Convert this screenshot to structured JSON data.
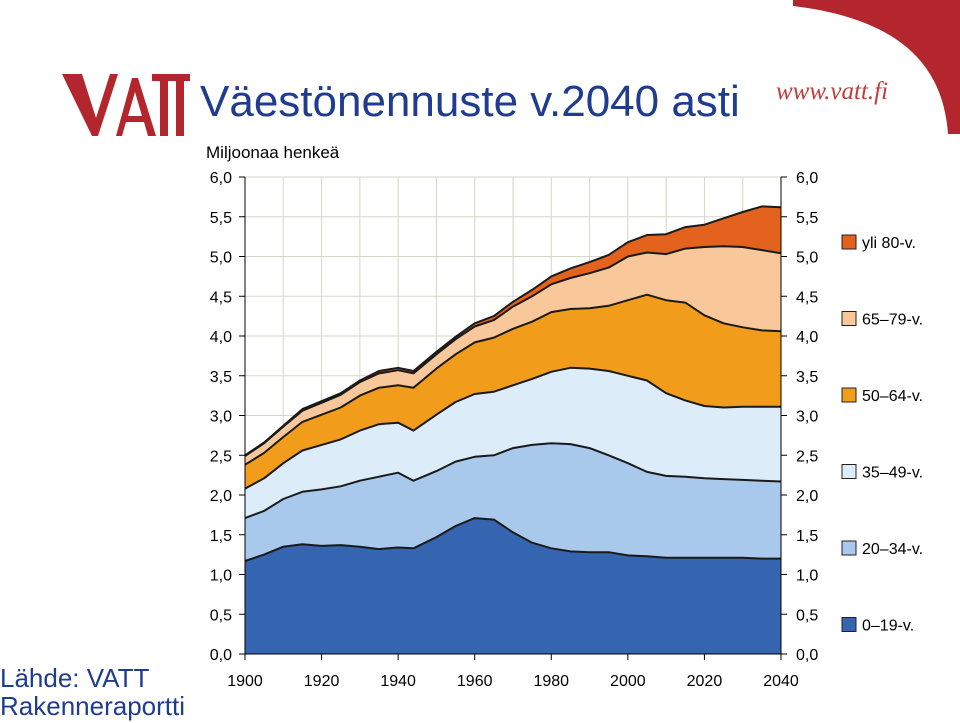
{
  "header": {
    "logo_text": "VATT",
    "title": "Väestönennuste v.2040 asti",
    "url": "www.vatt.fi"
  },
  "source": {
    "line1": "Lähde: VATT",
    "line2": "Rakenneraportti"
  },
  "colors": {
    "brand_red": "#b3262d",
    "title_blue": "#1f3c8f"
  },
  "chart_data": {
    "type": "area",
    "stacked": true,
    "ylabel": "Miljoonaa henkeä",
    "xlim": [
      1900,
      2040
    ],
    "ylim": [
      0,
      6
    ],
    "x_ticks": [
      "1900",
      "1920",
      "1940",
      "1960",
      "1980",
      "2000",
      "2020",
      "2040"
    ],
    "y_ticks": [
      "0,0",
      "0,5",
      "1,0",
      "1,5",
      "2,0",
      "2,5",
      "3,0",
      "3,5",
      "4,0",
      "4,5",
      "5,0",
      "5,5",
      "6,0"
    ],
    "grid": true,
    "legend_position": "right",
    "x": [
      1900,
      1905,
      1910,
      1915,
      1920,
      1925,
      1930,
      1935,
      1940,
      1944,
      1950,
      1955,
      1960,
      1965,
      1970,
      1975,
      1980,
      1985,
      1990,
      1995,
      2000,
      2005,
      2010,
      2015,
      2020,
      2025,
      2030,
      2035,
      2040
    ],
    "series": [
      {
        "name": "0–19-v.",
        "color": "#3565b0",
        "values": [
          1.17,
          1.25,
          1.35,
          1.38,
          1.36,
          1.37,
          1.35,
          1.32,
          1.34,
          1.33,
          1.47,
          1.61,
          1.71,
          1.69,
          1.53,
          1.4,
          1.33,
          1.29,
          1.28,
          1.28,
          1.24,
          1.23,
          1.21,
          1.21,
          1.21,
          1.21,
          1.21,
          1.2,
          1.2
        ]
      },
      {
        "name": "20–34-v.",
        "color": "#a8c8ec",
        "values": [
          0.54,
          0.55,
          0.6,
          0.66,
          0.71,
          0.74,
          0.83,
          0.91,
          0.94,
          0.85,
          0.83,
          0.81,
          0.77,
          0.81,
          1.06,
          1.23,
          1.32,
          1.35,
          1.31,
          1.22,
          1.16,
          1.06,
          1.03,
          1.02,
          1.0,
          0.99,
          0.98,
          0.98,
          0.97
        ]
      },
      {
        "name": "35–49-v.",
        "color": "#dcecf8",
        "values": [
          0.37,
          0.41,
          0.45,
          0.52,
          0.56,
          0.59,
          0.63,
          0.66,
          0.63,
          0.63,
          0.71,
          0.75,
          0.79,
          0.8,
          0.79,
          0.83,
          0.9,
          0.96,
          1.0,
          1.06,
          1.1,
          1.15,
          1.04,
          0.96,
          0.91,
          0.9,
          0.92,
          0.93,
          0.94
        ]
      },
      {
        "name": "50–64-v.",
        "color": "#f29c1c",
        "values": [
          0.3,
          0.32,
          0.33,
          0.36,
          0.38,
          0.4,
          0.44,
          0.46,
          0.47,
          0.54,
          0.58,
          0.6,
          0.65,
          0.68,
          0.71,
          0.72,
          0.75,
          0.74,
          0.76,
          0.82,
          0.95,
          1.08,
          1.17,
          1.23,
          1.14,
          1.06,
          1.0,
          0.96,
          0.95
        ]
      },
      {
        "name": "65–79-v.",
        "color": "#f8c89a",
        "values": [
          0.11,
          0.12,
          0.13,
          0.14,
          0.15,
          0.16,
          0.17,
          0.18,
          0.19,
          0.18,
          0.18,
          0.19,
          0.2,
          0.22,
          0.28,
          0.32,
          0.35,
          0.39,
          0.44,
          0.48,
          0.55,
          0.53,
          0.58,
          0.68,
          0.86,
          0.97,
          1.01,
          1.01,
          0.98
        ]
      },
      {
        "name": "yli 80-v.",
        "color": "#e2621e",
        "values": [
          0.01,
          0.01,
          0.01,
          0.02,
          0.02,
          0.02,
          0.02,
          0.03,
          0.03,
          0.03,
          0.03,
          0.03,
          0.04,
          0.05,
          0.06,
          0.08,
          0.1,
          0.12,
          0.14,
          0.16,
          0.18,
          0.22,
          0.25,
          0.27,
          0.28,
          0.35,
          0.44,
          0.55,
          0.58
        ]
      }
    ]
  }
}
